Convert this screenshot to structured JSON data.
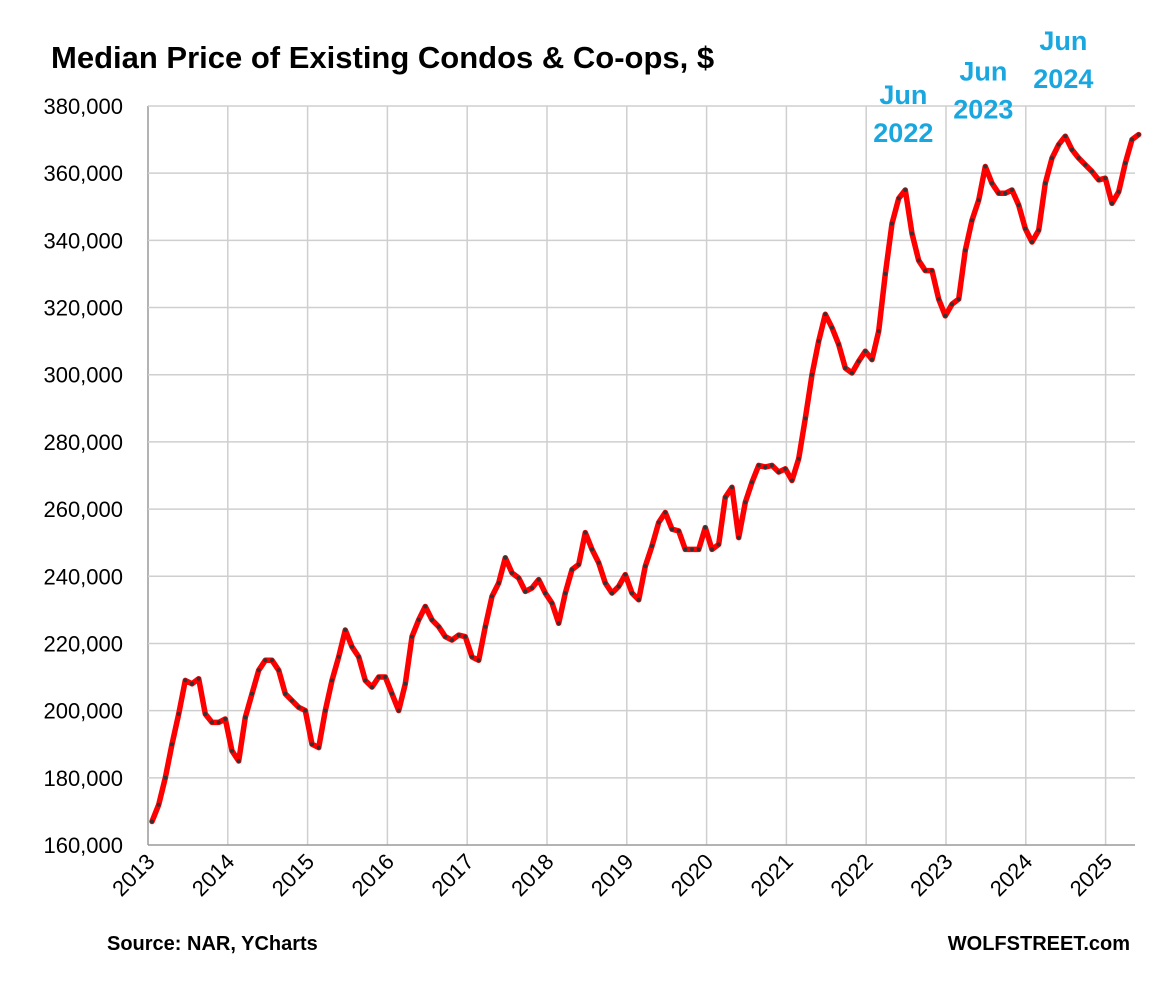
{
  "chart_data": {
    "type": "line",
    "title": "Median Price of Existing Condos & Co-ops, $",
    "xlabel": "",
    "ylabel": "",
    "frequency": "monthly",
    "x_start": "2013-01",
    "x_end": "2025-05",
    "x_ticks": [
      "2013",
      "2014",
      "2015",
      "2016",
      "2017",
      "2018",
      "2019",
      "2020",
      "2021",
      "2022",
      "2023",
      "2024",
      "2025"
    ],
    "y_ticks": [
      "160,000",
      "180,000",
      "200,000",
      "220,000",
      "240,000",
      "260,000",
      "280,000",
      "300,000",
      "320,000",
      "340,000",
      "360,000",
      "380,000"
    ],
    "ylim": [
      160000,
      380000
    ],
    "grid": true,
    "legend": "none",
    "series": [
      {
        "color": "#ff0000",
        "marker_color": "#333333",
        "values": [
          167000,
          172000,
          180000,
          190000,
          199000,
          209000,
          208000,
          209500,
          199000,
          196500,
          196500,
          197500,
          188000,
          185000,
          198000,
          205000,
          212000,
          215000,
          215000,
          212000,
          205000,
          203000,
          201000,
          200000,
          190000,
          189000,
          200000,
          209000,
          216000,
          224000,
          219000,
          216000,
          209000,
          207000,
          210000,
          210000,
          205000,
          200000,
          208000,
          222000,
          227000,
          231000,
          227000,
          225000,
          222000,
          221000,
          222500,
          222000,
          216000,
          215000,
          225000,
          234000,
          238000,
          245500,
          241000,
          239500,
          235500,
          236500,
          239000,
          235000,
          232000,
          226000,
          235000,
          242000,
          243500,
          253000,
          248000,
          244000,
          238000,
          235000,
          237000,
          240500,
          235000,
          233000,
          243000,
          249000,
          256000,
          259000,
          254000,
          253500,
          248000,
          248000,
          248000,
          254500,
          248000,
          249500,
          263500,
          266500,
          251500,
          262000,
          268000,
          273000,
          272500,
          273000,
          271000,
          272000,
          268500,
          275000,
          287000,
          300000,
          310000,
          318000,
          314000,
          309000,
          302000,
          300500,
          304000,
          307000,
          304500,
          313000,
          330000,
          345000,
          352500,
          355000,
          342000,
          334000,
          331000,
          331000,
          322500,
          317500,
          321000,
          322500,
          337000,
          346000,
          352000,
          362000,
          357000,
          354000,
          354000,
          355000,
          350500,
          343500,
          339500,
          343000,
          357000,
          364500,
          368500,
          371000,
          367000,
          364500,
          362500,
          360500,
          358000,
          358500,
          351000,
          354500,
          363000,
          370000,
          371500
        ]
      }
    ],
    "annotations": [
      {
        "lines": [
          "Jun",
          "2022"
        ],
        "color": "#1aa7e0",
        "x": "2022-06",
        "y": 355000
      },
      {
        "lines": [
          "Jun",
          "2023"
        ],
        "color": "#1aa7e0",
        "x": "2023-06",
        "y": 362000
      },
      {
        "lines": [
          "Jun",
          "2024"
        ],
        "color": "#1aa7e0",
        "x": "2024-06",
        "y": 371000
      }
    ]
  },
  "footer": {
    "source": "Source: NAR, YCharts",
    "brand": "WOLFSTREET.com"
  }
}
